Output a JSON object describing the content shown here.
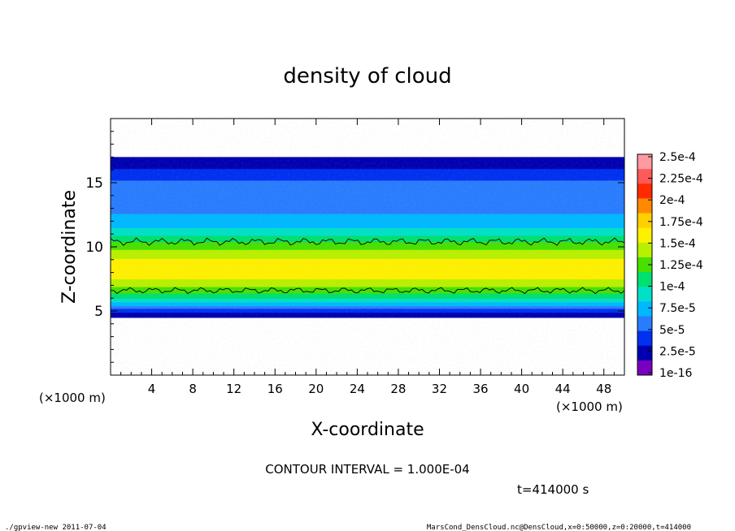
{
  "chart_data": {
    "type": "heatmap",
    "title": "density of cloud",
    "xlabel": "X-coordinate",
    "ylabel": "Z-coordinate",
    "x_unit_label": "(×1000 m)",
    "xlim": [
      0,
      50
    ],
    "ylim": [
      0,
      20
    ],
    "xticks": [
      4,
      8,
      12,
      16,
      20,
      24,
      28,
      32,
      36,
      40,
      44,
      48
    ],
    "yticks": [
      5,
      10,
      15
    ],
    "colorbar": {
      "labels": [
        "2.5e-4",
        "2.25e-4",
        "2e-4",
        "1.75e-4",
        "1.5e-4",
        "1.25e-4",
        "1e-4",
        "7.5e-5",
        "5e-5",
        "2.5e-5",
        "1e-16"
      ],
      "colors": [
        "#ff9aa0",
        "#ff5a5a",
        "#ff2a00",
        "#ff8a00",
        "#ffd000",
        "#fff000",
        "#b8f000",
        "#48e000",
        "#00e070",
        "#00e0c8",
        "#00b8ff",
        "#2a7cff",
        "#0030f0",
        "#0000b0",
        "#7a00c0"
      ]
    },
    "cloud_profile": {
      "z_km": [
        4.5,
        5.0,
        5.5,
        6.0,
        7.0,
        8.0,
        9.0,
        10.0,
        11.0,
        12.0,
        13.0,
        14.0,
        15.0,
        16.0,
        16.5,
        17.0
      ],
      "density": [
        1e-16,
        2.5e-05,
        6e-05,
        9e-05,
        0.00013,
        0.000155,
        0.000145,
        0.00012,
        8.5e-05,
        6e-05,
        5e-05,
        4.5e-05,
        4e-05,
        2e-05,
        5e-06,
        1e-16
      ]
    },
    "contour_level": 0.0001,
    "contour_interval_text": "CONTOUR INTERVAL = 1.000E-04",
    "time_text": "t=414000 s"
  },
  "footer": {
    "left": "./gpview-new  2011-07-04",
    "right": "MarsCond_DensCloud.nc@DensCloud,x=0:50000,z=0:20000,t=414000"
  }
}
